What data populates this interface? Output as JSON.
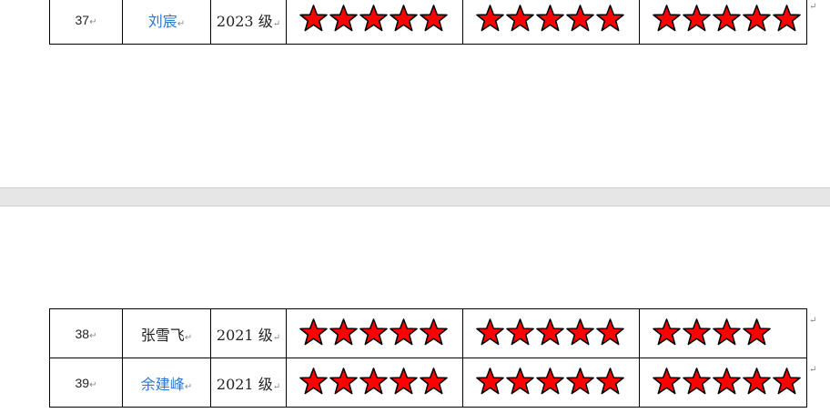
{
  "star_color": "#ff0000",
  "rows_page1": [
    {
      "num": "37",
      "name": "刘宸",
      "name_link": true,
      "grade": "2023 级",
      "stars": [
        5,
        5,
        5
      ]
    }
  ],
  "rows_page2": [
    {
      "num": "38",
      "name": "张雪飞",
      "name_link": false,
      "grade": "2021 级",
      "stars": [
        5,
        5,
        4
      ]
    },
    {
      "num": "39",
      "name": "余建峰",
      "name_link": true,
      "grade": "2021 级",
      "stars": [
        5,
        5,
        5
      ]
    }
  ]
}
